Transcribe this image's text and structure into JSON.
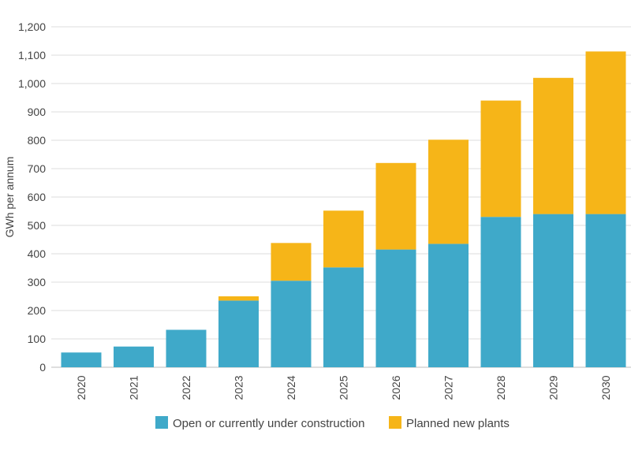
{
  "chart_data": {
    "type": "bar",
    "stacked": true,
    "title": "",
    "xlabel": "",
    "ylabel": "GWh per annum",
    "ylim": [
      0,
      1200
    ],
    "yticks": [
      0,
      100,
      200,
      300,
      400,
      500,
      600,
      700,
      800,
      900,
      1000,
      1100,
      1200
    ],
    "ytick_labels": [
      "0",
      "100",
      "200",
      "300",
      "400",
      "500",
      "600",
      "700",
      "800",
      "900",
      "1,000",
      "1,100",
      "1,200"
    ],
    "grid": true,
    "legend_position": "bottom",
    "categories": [
      "2020",
      "2021",
      "2022",
      "2023",
      "2024",
      "2025",
      "2026",
      "2027",
      "2028",
      "2029",
      "2030"
    ],
    "series": [
      {
        "name": "Open or currently under construction",
        "color": "#3fa9c9",
        "values": [
          52,
          73,
          132,
          235,
          305,
          352,
          415,
          435,
          530,
          540,
          540
        ]
      },
      {
        "name": "Planned new plants",
        "color": "#f6b518",
        "values": [
          0,
          0,
          0,
          15,
          133,
          200,
          305,
          367,
          410,
          480,
          573
        ]
      }
    ]
  }
}
